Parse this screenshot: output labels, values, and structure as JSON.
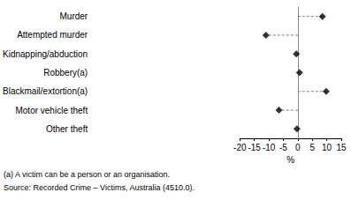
{
  "chart_data": {
    "type": "dot",
    "orientation": "horizontal",
    "categories": [
      "Murder",
      "Attempted murder",
      "Kidnapping/abduction",
      "Robbery(a)",
      "Blackmail/extortion(a)",
      "Motor vehicle theft",
      "Other theft"
    ],
    "values": [
      8.5,
      -11,
      -0.5,
      0.6,
      9.8,
      -6.5,
      -0.3
    ],
    "color": "#000000",
    "marker": "diamond",
    "line_style": "dashed",
    "xlabel": "%",
    "xlim": [
      -20,
      15
    ],
    "xticks": [
      -20,
      -15,
      -10,
      -5,
      0,
      5,
      10,
      15
    ],
    "grid": false,
    "annotations": [
      "(a) A victim can be a person or an organisation.",
      "Source: Recorded Crime – Victims, Australia (4510.0)."
    ]
  }
}
